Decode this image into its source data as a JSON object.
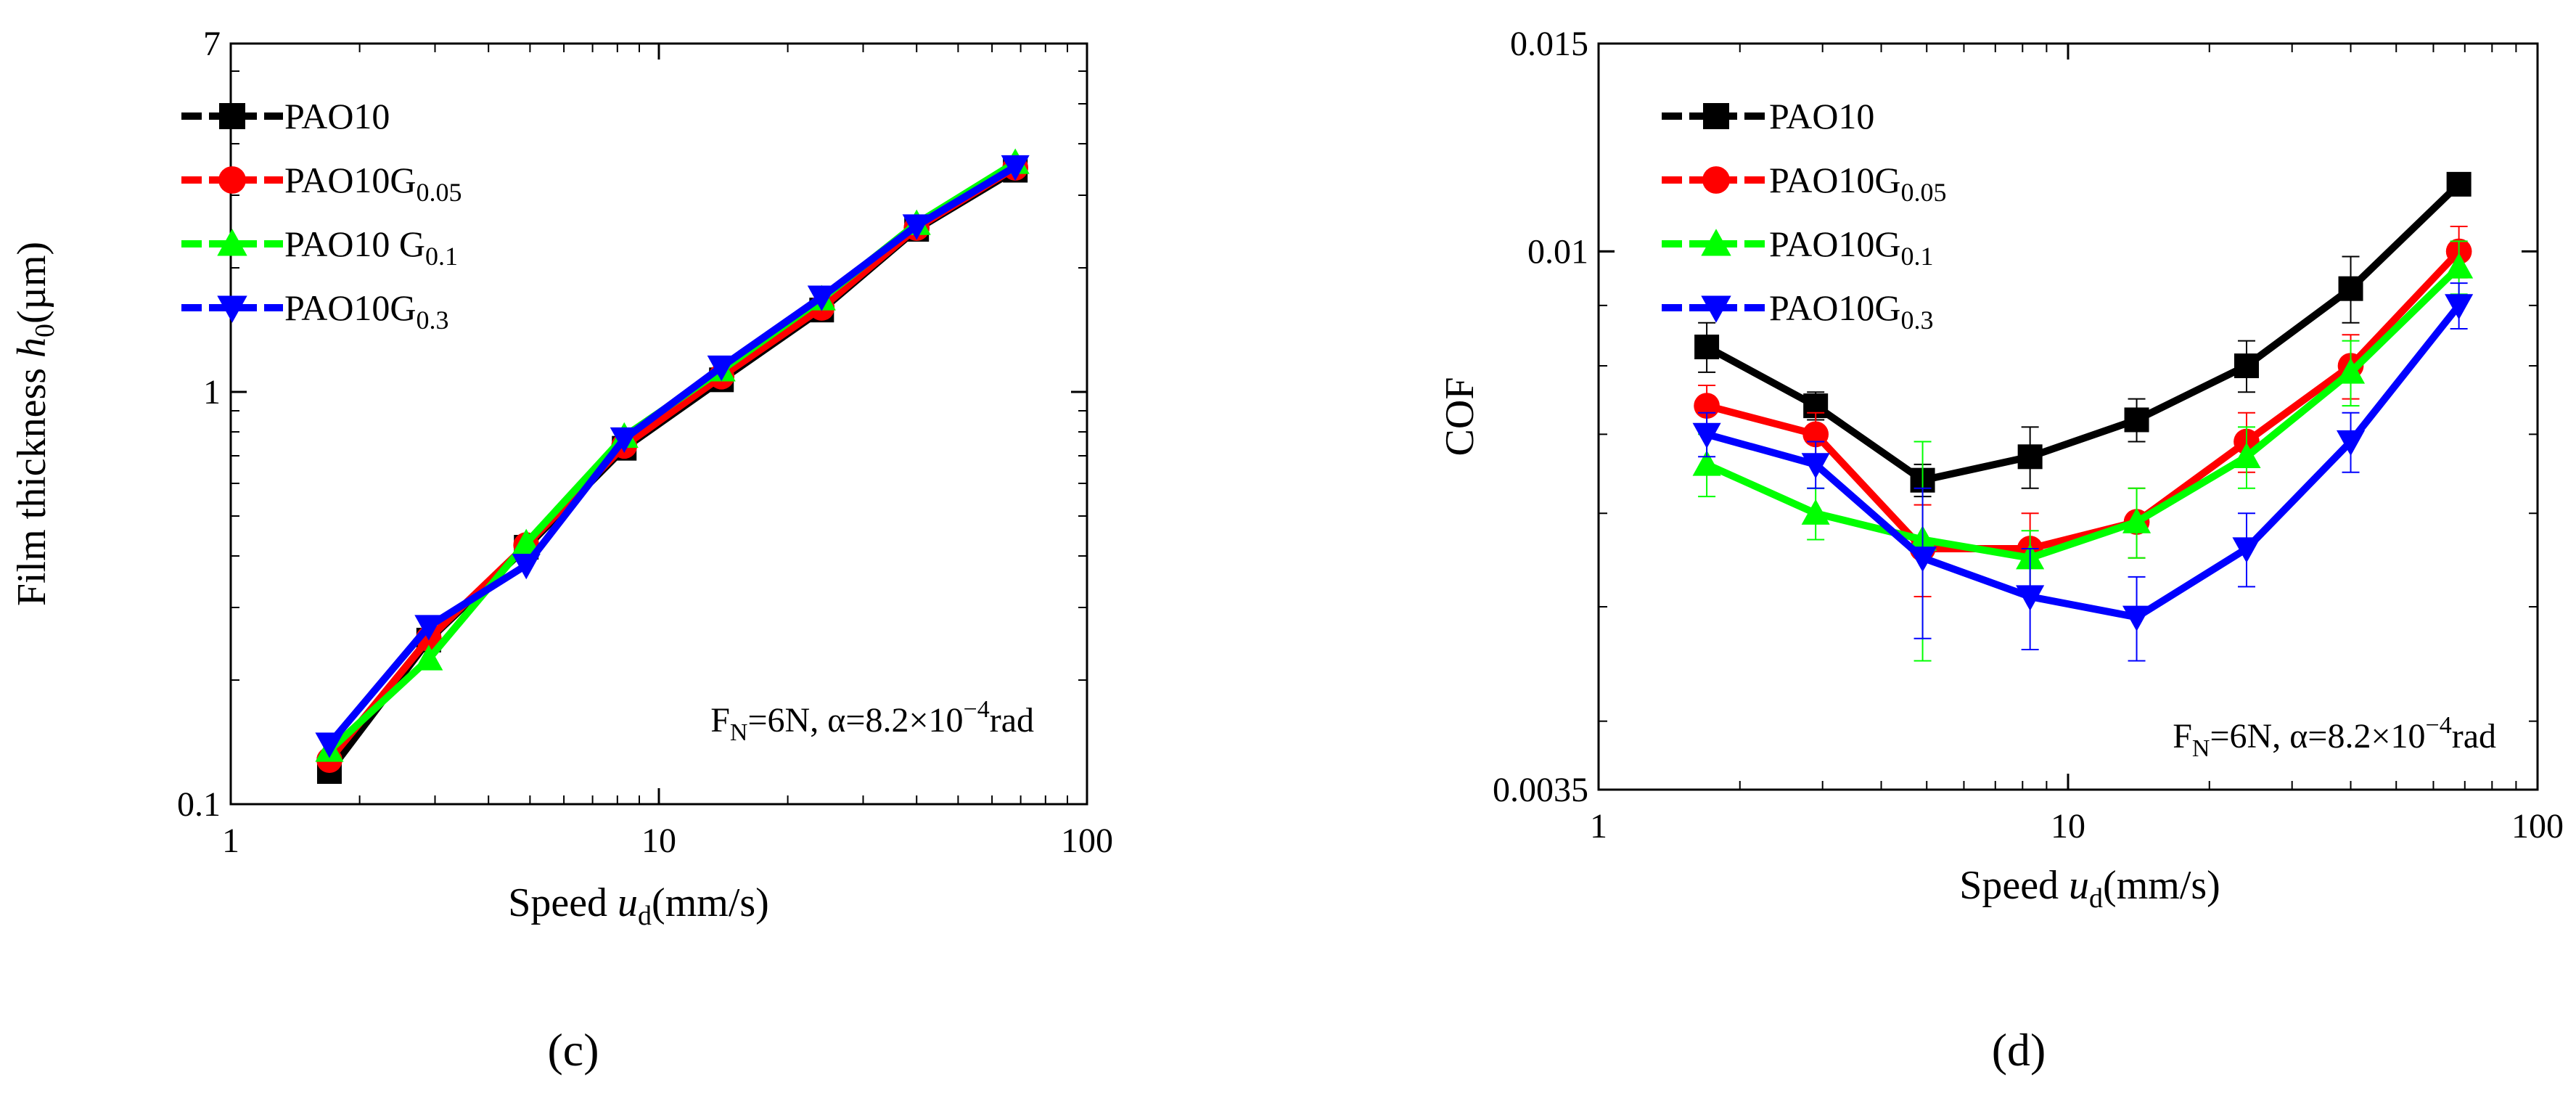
{
  "figure_labels": [
    "(c)",
    "(d)"
  ],
  "chart_data": [
    {
      "type": "line",
      "panel": "(c)",
      "xscale": "log",
      "yscale": "log",
      "xlim": [
        1,
        100
      ],
      "ylim": [
        0.1,
        7
      ],
      "x_ticks": [
        1,
        10,
        100
      ],
      "x_tick_labels": [
        "1",
        "10",
        "100"
      ],
      "y_ticks": [
        0.1,
        1,
        7
      ],
      "y_tick_labels": [
        "0.1",
        "1",
        "7"
      ],
      "xlabel": {
        "prefix": "Speed ",
        "var": "u",
        "sub": "d",
        "suffix": "(mm/s)"
      },
      "ylabel": {
        "prefix": "Film thickness ",
        "var": "h",
        "sub": "0",
        "suffix": "(µm)"
      },
      "annotation": {
        "part1": "F",
        "sub": "N",
        "part2": "=6N, α=8.2×10",
        "sup": "−4",
        "part3": "rad"
      },
      "legend_position": "top-left",
      "x": [
        1.7,
        2.9,
        4.9,
        8.3,
        14,
        24,
        40,
        68
      ],
      "series": [
        {
          "name": "PAO10",
          "name_base": "PAO10",
          "name_sub": "",
          "color": "#000000",
          "marker": "square",
          "values": [
            0.12,
            0.25,
            0.42,
            0.73,
            1.07,
            1.58,
            2.48,
            3.45
          ]
        },
        {
          "name": "PAO10G0.05",
          "name_base": "PAO10G",
          "name_sub": "0.05",
          "color": "#ff0000",
          "marker": "circle",
          "values": [
            0.128,
            0.252,
            0.425,
            0.74,
            1.09,
            1.6,
            2.5,
            3.5
          ]
        },
        {
          "name": "PAO10 G0.1",
          "name_base": "PAO10 G",
          "name_sub": "0.1",
          "color": "#00ff00",
          "marker": "triangle-up",
          "values": [
            0.135,
            0.225,
            0.43,
            0.78,
            1.13,
            1.68,
            2.56,
            3.6
          ]
        },
        {
          "name": "PAO10G0.3",
          "name_base": "PAO10G",
          "name_sub": "0.3",
          "color": "#0000ff",
          "marker": "triangle-down",
          "values": [
            0.14,
            0.27,
            0.38,
            0.77,
            1.15,
            1.7,
            2.53,
            3.52
          ]
        }
      ]
    },
    {
      "type": "line",
      "panel": "(d)",
      "xscale": "log",
      "yscale": "log",
      "xlim": [
        1,
        100
      ],
      "ylim": [
        0.0035,
        0.015
      ],
      "x_ticks": [
        1,
        10,
        100
      ],
      "x_tick_labels": [
        "1",
        "10",
        "100"
      ],
      "y_ticks": [
        0.0035,
        0.01,
        0.015
      ],
      "y_tick_labels": [
        "0.0035",
        "0.01",
        "0.015"
      ],
      "xlabel": {
        "prefix": "Speed ",
        "var": "u",
        "sub": "d",
        "suffix": "(mm/s)"
      },
      "ylabel": {
        "prefix": "COF",
        "var": "",
        "sub": "",
        "suffix": ""
      },
      "annotation": {
        "part1": "F",
        "sub": "N",
        "part2": "=6N, α=8.2×10",
        "sup": "−4",
        "part3": "rad"
      },
      "legend_position": "top-left",
      "x": [
        1.7,
        2.9,
        4.9,
        8.3,
        14,
        24,
        40,
        68
      ],
      "series": [
        {
          "name": "PAO10",
          "name_base": "PAO10",
          "name_sub": "",
          "color": "#000000",
          "marker": "square",
          "values": [
            0.0083,
            0.0074,
            0.0064,
            0.0067,
            0.0072,
            0.008,
            0.0093,
            0.0114
          ],
          "errors": [
            0.0004,
            0.0002,
            0.0002,
            0.0004,
            0.0003,
            0.0004,
            0.0006,
            0.0002
          ]
        },
        {
          "name": "PAO10G0.05",
          "name_base": "PAO10G",
          "name_sub": "0.05",
          "color": "#ff0000",
          "marker": "circle",
          "values": [
            0.0074,
            0.007,
            0.0056,
            0.0056,
            0.0059,
            0.0069,
            0.008,
            0.01
          ],
          "errors": [
            0.0003,
            0.0003,
            0.0005,
            0.0004,
            0.0004,
            0.0004,
            0.0005,
            0.0005
          ]
        },
        {
          "name": "PAO10G0.1",
          "name_base": "PAO10G",
          "name_sub": "0.1",
          "color": "#00ff00",
          "marker": "triangle-up",
          "values": [
            0.0066,
            0.006,
            0.0057,
            0.0055,
            0.0059,
            0.0067,
            0.0079,
            0.0097
          ],
          "errors": [
            0.0004,
            0.0003,
            0.0012,
            0.0003,
            0.0004,
            0.0004,
            0.0005,
            0.0005
          ]
        },
        {
          "name": "PAO10G0.3",
          "name_base": "PAO10G",
          "name_sub": "0.3",
          "color": "#0000ff",
          "marker": "triangle-down",
          "values": [
            0.007,
            0.0066,
            0.0055,
            0.0051,
            0.0049,
            0.0056,
            0.0069,
            0.009
          ],
          "errors": [
            0.0003,
            0.0003,
            0.0008,
            0.0005,
            0.0004,
            0.0004,
            0.0004,
            0.0004
          ]
        }
      ]
    }
  ]
}
